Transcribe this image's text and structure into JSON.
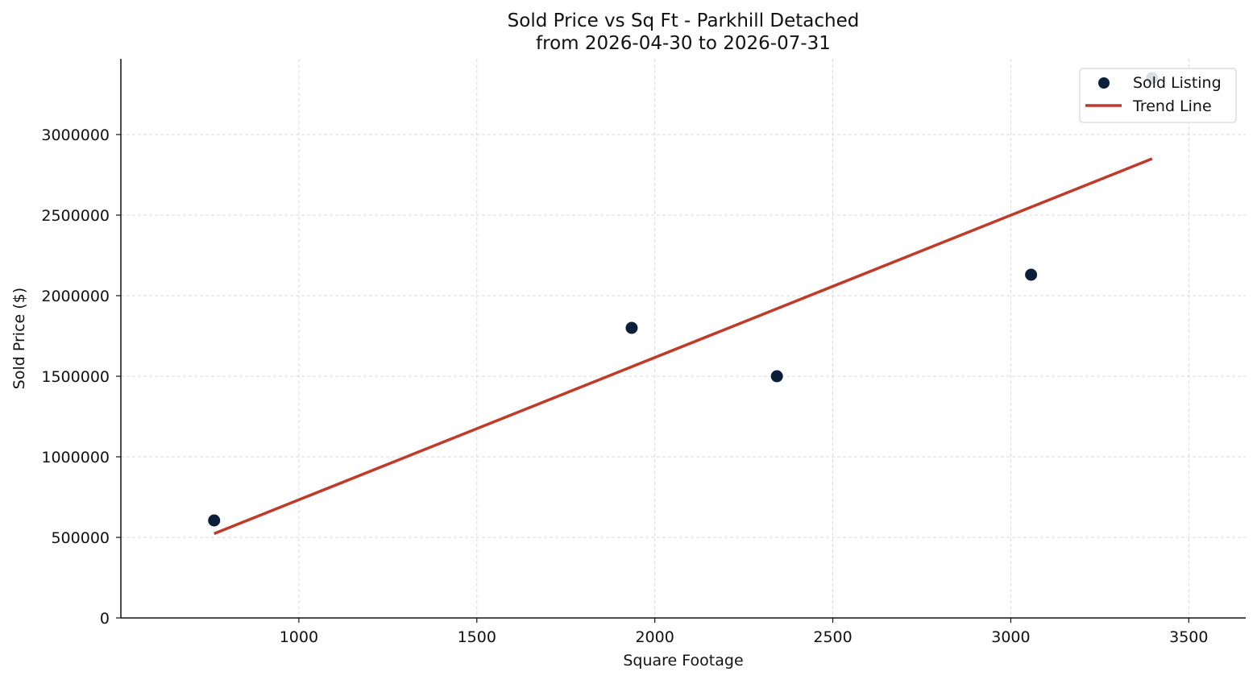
{
  "chart_data": {
    "type": "scatter",
    "title": "Sold Price vs Sq Ft - Parkhill Detached",
    "subtitle": "from 2026-04-30 to 2026-07-31",
    "xlabel": "Square Footage",
    "ylabel": "Sold Price ($)",
    "xlim": [
      500,
      3660
    ],
    "ylim": [
      0,
      3470000
    ],
    "xticks": [
      1000,
      1500,
      2000,
      2500,
      3000,
      3500
    ],
    "yticks": [
      0,
      500000,
      1000000,
      1500000,
      2000000,
      2500000,
      3000000
    ],
    "xtick_labels": [
      "1000",
      "1500",
      "2000",
      "2500",
      "3000",
      "3500"
    ],
    "ytick_labels": [
      "0",
      "500000",
      "1000000",
      "1500000",
      "2000000",
      "2500000",
      "3000000"
    ],
    "grid": true,
    "legend_position": "top-right",
    "series": [
      {
        "name": "Sold Listing",
        "kind": "scatter",
        "color": "#0b1f3a",
        "points": [
          {
            "x": 762,
            "y": 605000
          },
          {
            "x": 1935,
            "y": 1800000
          },
          {
            "x": 2343,
            "y": 1500000
          },
          {
            "x": 3057,
            "y": 2130000
          },
          {
            "x": 3397,
            "y": 3350000
          }
        ]
      },
      {
        "name": "Trend Line",
        "kind": "line",
        "color": "#c0392b",
        "points": [
          {
            "x": 762,
            "y": 523000
          },
          {
            "x": 3397,
            "y": 2850000
          }
        ]
      }
    ]
  }
}
